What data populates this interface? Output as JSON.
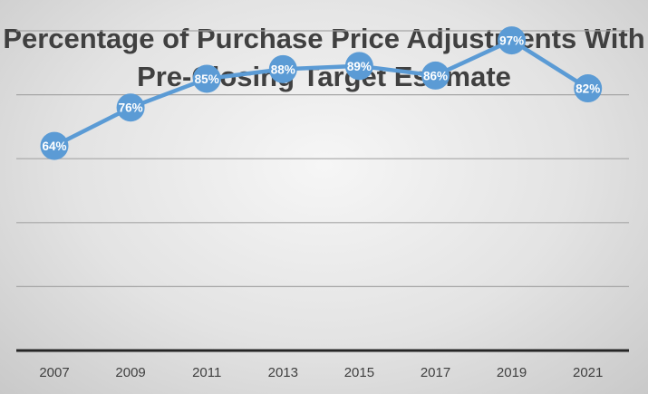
{
  "chart_data": {
    "type": "line",
    "title": "Percentage of Purchase Price Adjustments With Pre-Closing Target Estimate",
    "categories": [
      "2007",
      "2009",
      "2011",
      "2013",
      "2015",
      "2017",
      "2019",
      "2021"
    ],
    "values": [
      64,
      76,
      85,
      88,
      89,
      86,
      97,
      82
    ],
    "data_labels": [
      "64%",
      "76%",
      "85%",
      "88%",
      "89%",
      "86%",
      "97%",
      "82%"
    ],
    "xlabel": "",
    "ylabel": "",
    "ylim": [
      0,
      110
    ],
    "grid": true,
    "legend": "none",
    "colors": {
      "line": "#5b9bd5",
      "grid": "#a6a6a6",
      "axis": "#262626",
      "text": "#404040",
      "background": "#e3e3e3"
    }
  }
}
